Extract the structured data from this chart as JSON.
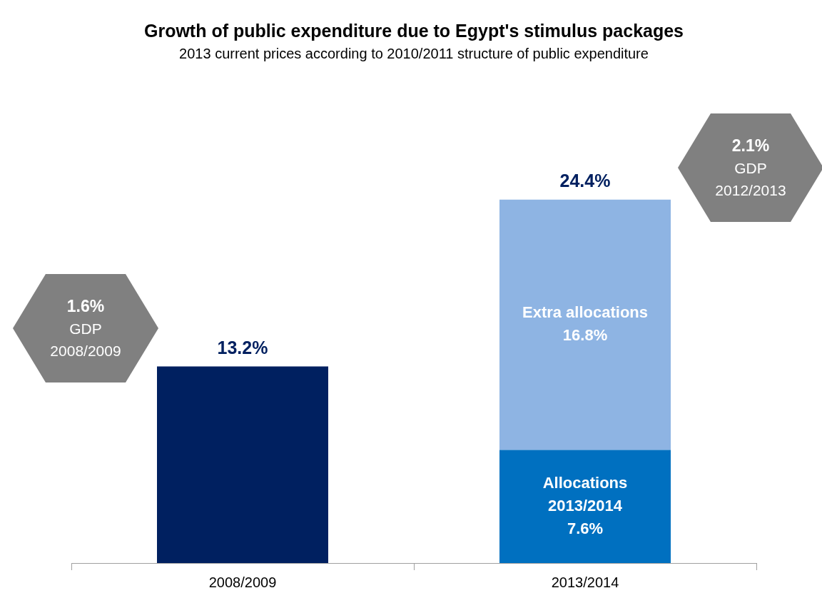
{
  "chart_data": {
    "type": "bar",
    "title": "Growth of public expenditure due to Egypt's stimulus packages",
    "subtitle": "2013 current prices according to 2010/2011 structure of public expenditure",
    "categories": [
      "2008/2009",
      "2013/2014"
    ],
    "stacked": true,
    "legend": false,
    "tick_labels": "x",
    "series": [
      {
        "color": "#002060",
        "values": [
          13.2,
          null
        ]
      },
      {
        "name": "Allocations 2013/2014",
        "color": "#0070c0",
        "values": [
          null,
          7.6
        ],
        "value_labels": [
          null,
          "7.6%"
        ]
      },
      {
        "name": "Extra allocations",
        "color": "#8eb4e3",
        "values": [
          null,
          16.8
        ],
        "value_labels": [
          null,
          "16.8%"
        ]
      }
    ],
    "totals": [
      "13.2%",
      "24.4%"
    ],
    "annotations": [
      "1.6%\nGDP\n2008/2009",
      "2.1%\nGDP\n2012/2013"
    ]
  }
}
